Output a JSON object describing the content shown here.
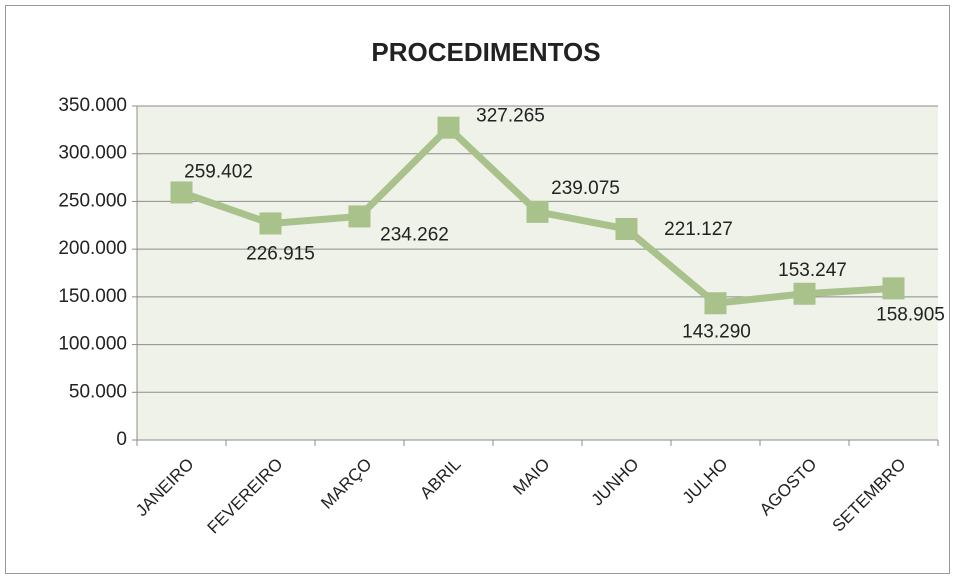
{
  "chart_data": {
    "type": "line",
    "title": "PROCEDIMENTOS",
    "categories": [
      "JANEIRO",
      "FEVEREIRO",
      "MARÇO",
      "ABRIL",
      "MAIO",
      "JUNHO",
      "JULHO",
      "AGOSTO",
      "SETEMBRO"
    ],
    "series": [
      {
        "name": "PROCEDIMENTOS",
        "color": "#a9c18b",
        "values": [
          259402,
          226915,
          234262,
          327265,
          239075,
          221127,
          143290,
          153247,
          158905
        ],
        "value_labels": [
          "259.402",
          "226.915",
          "234.262",
          "327.265",
          "239.075",
          "221.127",
          "143.290",
          "153.247",
          "158.905"
        ]
      }
    ],
    "ylim": [
      0,
      350000
    ],
    "yticks": [
      0,
      {
        "value": 50000,
        "label": "50.000"
      },
      {
        "value": 100000,
        "label": "100.000"
      },
      {
        "value": 150000,
        "label": "150.000"
      },
      {
        "value": 200000,
        "label": "200.000"
      },
      {
        "value": 250000,
        "label": "250.000"
      },
      {
        "value": 300000,
        "label": "300.000"
      },
      {
        "value": 350000,
        "label": "350.000"
      }
    ],
    "grid": true
  }
}
